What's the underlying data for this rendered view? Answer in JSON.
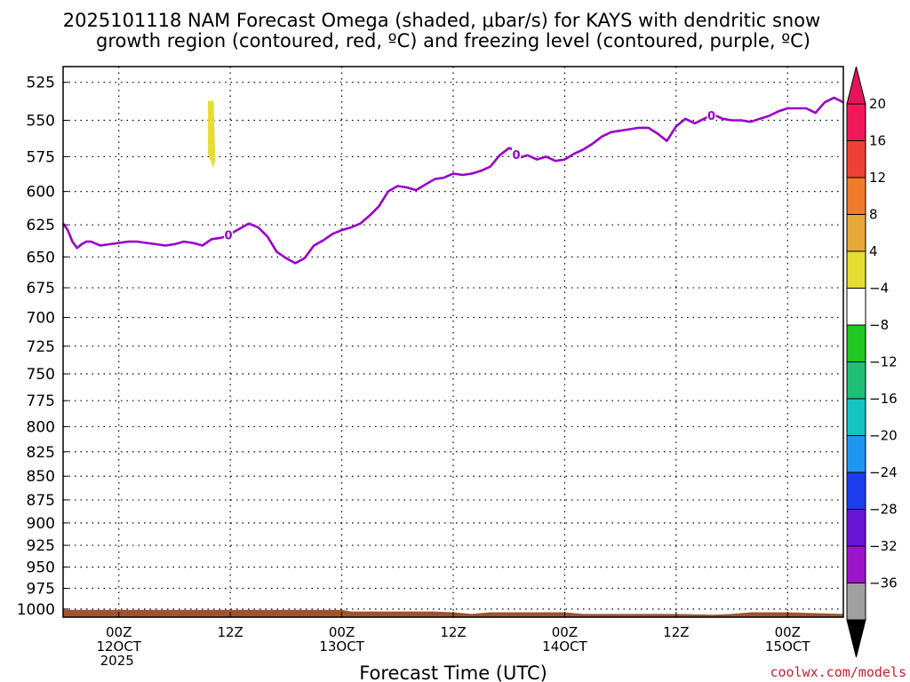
{
  "title_line1": "2025101118 NAM Forecast Omega (shaded, μbar/s) for KAYS with dendritic snow",
  "title_line2": "growth region (contoured, red, ºC) and freezing level (contoured, purple, ºC)",
  "credit": "coolwx.com/models",
  "colors": {
    "freezing_level": "#9900cc",
    "terrain": "#a0522d",
    "shading_positive": "#e6dc32"
  },
  "chart_data": {
    "type": "line",
    "title": "2025101118 NAM Forecast Omega (shaded, μbar/s) for KAYS with dendritic snow growth region (contoured, red, ºC) and freezing level (contoured, purple, ºC)",
    "xlabel": "Forecast Time (UTC)",
    "ylabel": "",
    "x_unit": "hours since 2025-10-11 18Z",
    "xlim": [
      0,
      84
    ],
    "ylim": [
      1010,
      515
    ],
    "y_scale": "log-pressure",
    "grid": true,
    "y_ticks": [
      525,
      550,
      575,
      600,
      625,
      650,
      675,
      700,
      725,
      750,
      775,
      800,
      825,
      850,
      875,
      900,
      925,
      950,
      975,
      1000
    ],
    "x_ticks": [
      {
        "x": 6,
        "lines": [
          "00Z",
          "12OCT",
          "2025"
        ]
      },
      {
        "x": 18,
        "lines": [
          "12Z"
        ]
      },
      {
        "x": 30,
        "lines": [
          "00Z",
          "13OCT"
        ]
      },
      {
        "x": 42,
        "lines": [
          "12Z"
        ]
      },
      {
        "x": 54,
        "lines": [
          "00Z",
          "14OCT"
        ]
      },
      {
        "x": 66,
        "lines": [
          "12Z"
        ]
      },
      {
        "x": 78,
        "lines": [
          "00Z",
          "15OCT"
        ]
      }
    ],
    "series": [
      {
        "name": "freezing level",
        "contour_label": "0",
        "label_x": [
          17.8,
          48.8,
          69.8
        ],
        "x": [
          0,
          0.5,
          1,
          1.5,
          2,
          2.5,
          3,
          4,
          5,
          6,
          7,
          8,
          9,
          10,
          11,
          12,
          13,
          14,
          15,
          16,
          17,
          17.5,
          18,
          19,
          20,
          21,
          22,
          23,
          24,
          25,
          26,
          27,
          28,
          29,
          30,
          31,
          32,
          33,
          34,
          35,
          36,
          37,
          38,
          39,
          40,
          41,
          42,
          43,
          44,
          45,
          46,
          47,
          48,
          48.5,
          49,
          49.5,
          50,
          51,
          52,
          53,
          54,
          55,
          56,
          57,
          58,
          59,
          60,
          61,
          62,
          63,
          64,
          65,
          66,
          67,
          68,
          69,
          70,
          71,
          72,
          73,
          74,
          75,
          76,
          77,
          78,
          79,
          80,
          81,
          82,
          83,
          84
        ],
        "y": [
          624,
          629,
          638,
          643,
          640,
          638,
          638,
          641,
          640,
          639,
          638,
          638,
          639,
          640,
          641,
          640,
          638,
          639,
          641,
          636,
          635,
          634,
          632,
          628,
          624,
          627,
          634,
          646,
          651,
          655,
          651,
          641,
          637,
          632,
          629,
          627,
          624,
          618,
          611,
          600,
          596,
          597,
          599,
          595,
          591,
          590,
          587,
          588,
          587,
          585,
          582,
          574,
          569,
          570,
          576,
          575,
          574,
          577,
          575,
          578,
          577,
          573,
          570,
          566,
          561,
          558,
          557,
          556,
          555,
          555,
          559,
          564,
          554,
          549,
          552,
          549,
          546,
          549,
          550,
          550,
          551,
          549,
          547,
          544,
          542,
          542,
          542,
          545,
          538,
          535,
          538
        ]
      }
    ],
    "shaded_regions": [
      {
        "band": "4 to 8",
        "x": [
          15.6,
          16.2
        ],
        "y_top": 537,
        "y_bottom": 583
      }
    ],
    "terrain": {
      "x": [
        0,
        6,
        18,
        30,
        31,
        40,
        42,
        44,
        46,
        54,
        56,
        60,
        66,
        70,
        72,
        74,
        78,
        84
      ],
      "y": [
        1001,
        1001,
        1001,
        1001,
        1003,
        1003,
        1004,
        1006,
        1004,
        1004,
        1006,
        1006,
        1006,
        1007,
        1006,
        1004,
        1004,
        1006
      ]
    },
    "colorbar": {
      "labels": [
        "20",
        "16",
        "12",
        "8",
        "4",
        "−4",
        "−8",
        "−12",
        "−16",
        "−20",
        "−24",
        "−28",
        "−32",
        "−36"
      ],
      "colors": [
        "#f0185a",
        "#ee4136",
        "#ef7b2b",
        "#e6a838",
        "#e6dc32",
        "#ffffff",
        "#21c821",
        "#1fbf78",
        "#15c3c3",
        "#1e96f0",
        "#1e3cf0",
        "#6a14d6",
        "#9c14c8",
        "#a0a0a0"
      ]
    }
  }
}
